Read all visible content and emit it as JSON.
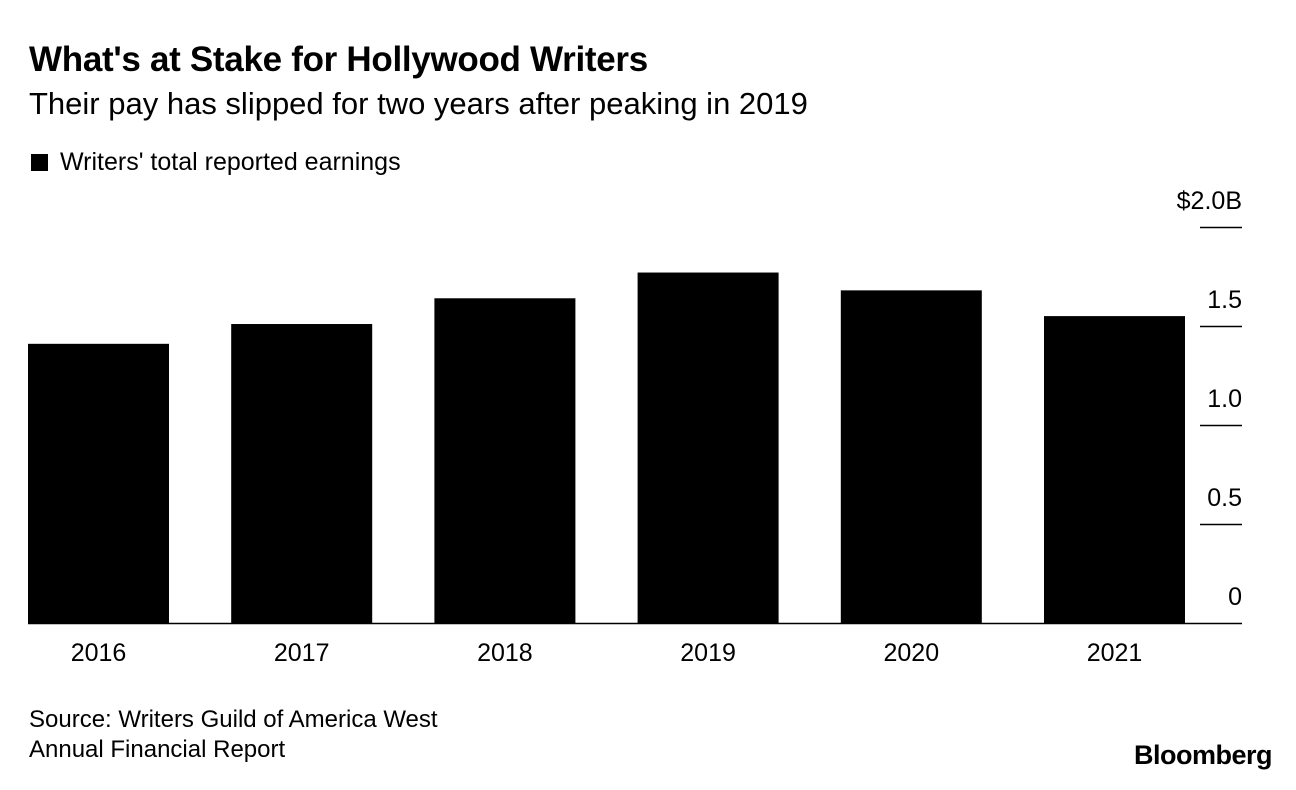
{
  "chart_data": {
    "type": "bar",
    "title": "What's at Stake for Hollywood Writers",
    "subtitle": "Their pay has slipped for two years after peaking in 2019",
    "legend": [
      "Writers' total reported earnings"
    ],
    "categories": [
      "2016",
      "2017",
      "2018",
      "2019",
      "2020",
      "2021"
    ],
    "series": [
      {
        "name": "Writers' total reported earnings",
        "values": [
          1.41,
          1.51,
          1.64,
          1.77,
          1.68,
          1.55
        ]
      }
    ],
    "ylim": [
      0,
      2.0
    ],
    "yticks": [
      0,
      0.5,
      1.0,
      1.5,
      2.0
    ],
    "ytick_labels": [
      "0",
      "0.5",
      "1.0",
      "1.5",
      "$2.0B"
    ],
    "ylabel": "",
    "xlabel": "",
    "bar_color": "#000000",
    "legend_position": "top-left",
    "yaxis_position": "right",
    "grid": false
  },
  "footer": {
    "source_line1": "Source: Writers Guild of America West",
    "source_line2": "Annual Financial Report",
    "brand": "Bloomberg"
  }
}
